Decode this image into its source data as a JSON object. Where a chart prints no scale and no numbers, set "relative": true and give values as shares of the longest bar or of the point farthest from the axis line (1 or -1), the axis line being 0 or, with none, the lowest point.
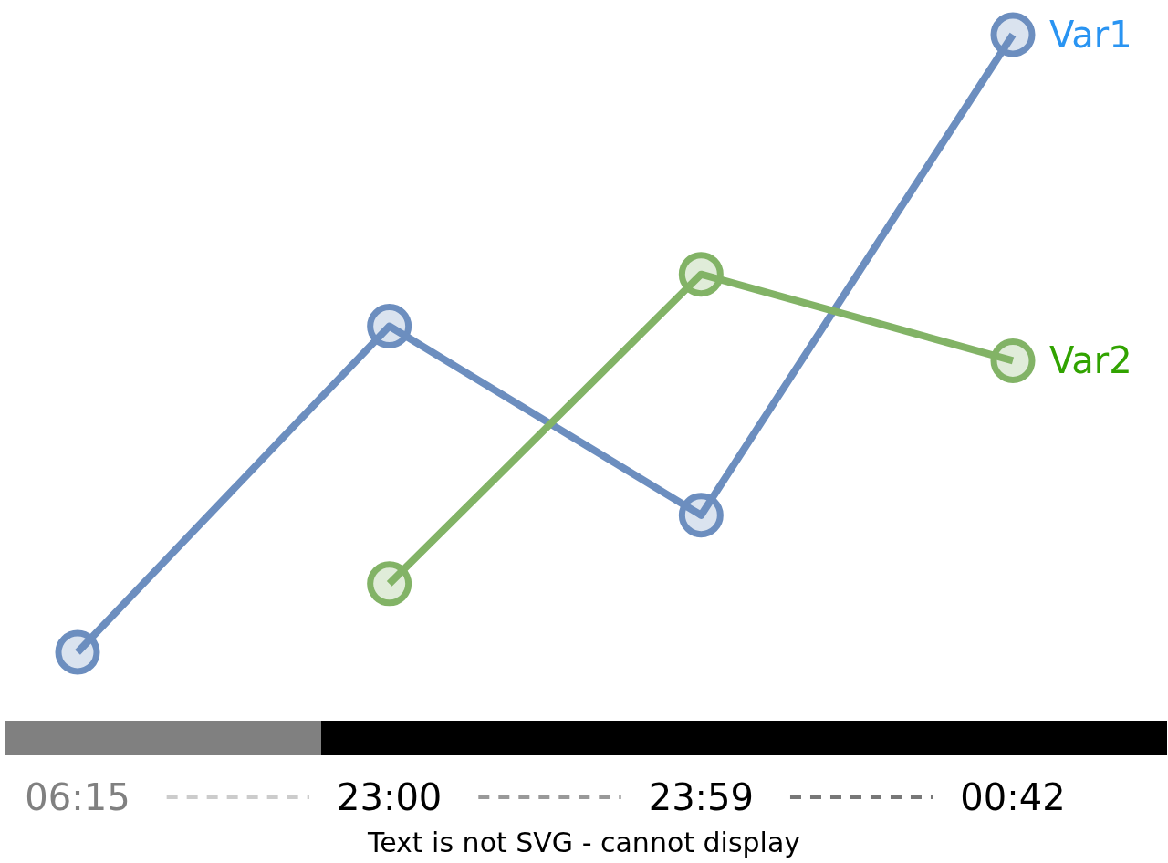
{
  "chart_data": {
    "type": "line",
    "relative": true,
    "categories": [
      "06:15",
      "23:00",
      "23:59",
      "00:42"
    ],
    "series": [
      {
        "name": "Var1",
        "color": "#6c8ebf",
        "values": [
          0,
          0.528,
          0.222,
          1
        ]
      },
      {
        "name": "Var2",
        "color": "#82b366",
        "values": [
          null,
          0.111,
          0.612,
          0.472
        ]
      }
    ],
    "marker": "circle",
    "line_style": "solid",
    "tick_labels": "x",
    "annotations": [
      "Text is not SVG - cannot display"
    ]
  }
}
